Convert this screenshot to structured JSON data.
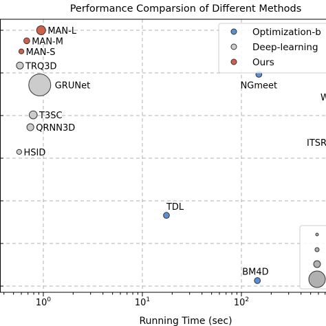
{
  "chart_data": {
    "type": "scatter",
    "title": "Performance Comparsion of Different Methods",
    "xlabel": "Running Time (sec)",
    "ylabel": "",
    "x_scale": "log",
    "xlim": [
      0.3,
      1000
    ],
    "grid": true,
    "x_ticks": [
      {
        "value": 1,
        "base": "10",
        "exp": "0"
      },
      {
        "value": 10,
        "base": "10",
        "exp": "1"
      },
      {
        "value": 100,
        "base": "10",
        "exp": "2"
      }
    ],
    "legend": {
      "placement": "top-right",
      "entries": [
        {
          "label": "Optimization-b",
          "color": "#5b8fd1"
        },
        {
          "label": "Deep-learning",
          "color": "#cccccc"
        },
        {
          "label": "Ours",
          "color": "#d1604b"
        }
      ]
    },
    "size_legend": {
      "placement": "bottom-right",
      "count": 4
    },
    "points": [
      {
        "label": "MAN-L",
        "x": 0.95,
        "y": 43.0,
        "size": 9,
        "color": "#d1604b",
        "label_side": "right"
      },
      {
        "label": "MAN-M",
        "x": 0.68,
        "y": 42.4,
        "size": 6,
        "color": "#d1604b",
        "label_side": "right"
      },
      {
        "label": "MAN-S",
        "x": 0.6,
        "y": 41.8,
        "size": 5,
        "color": "#d1604b",
        "label_side": "right"
      },
      {
        "label": "TRQ3D",
        "x": 0.58,
        "y": 41.0,
        "size": 7,
        "color": "#cccccc",
        "label_side": "right"
      },
      {
        "label": "GRUNet",
        "x": 0.92,
        "y": 39.9,
        "size": 22,
        "color": "#cccccc",
        "label_side": "right"
      },
      {
        "label": "T3SC",
        "x": 0.79,
        "y": 38.2,
        "size": 8,
        "color": "#cccccc",
        "label_side": "right"
      },
      {
        "label": "QRNN3D",
        "x": 0.74,
        "y": 37.5,
        "size": 7,
        "color": "#cccccc",
        "label_side": "right"
      },
      {
        "label": "HSID",
        "x": 0.57,
        "y": 36.1,
        "size": 5,
        "color": "#cccccc",
        "label_side": "right"
      },
      {
        "label": "NGmeet",
        "x": 150,
        "y": 40.5,
        "size": 6,
        "color": "#5b8fd1",
        "label_side": "below"
      },
      {
        "label": "TDL",
        "x": 17.5,
        "y": 32.5,
        "size": 6,
        "color": "#5b8fd1",
        "label_side": "above"
      },
      {
        "label": "BM4D",
        "x": 145,
        "y": 28.8,
        "size": 6,
        "color": "#5b8fd1",
        "label_side": "above"
      }
    ],
    "clipped_labels": [
      {
        "text": "ITSR",
        "position": "right-edge"
      },
      {
        "text": "W",
        "position": "right-edge"
      }
    ]
  }
}
